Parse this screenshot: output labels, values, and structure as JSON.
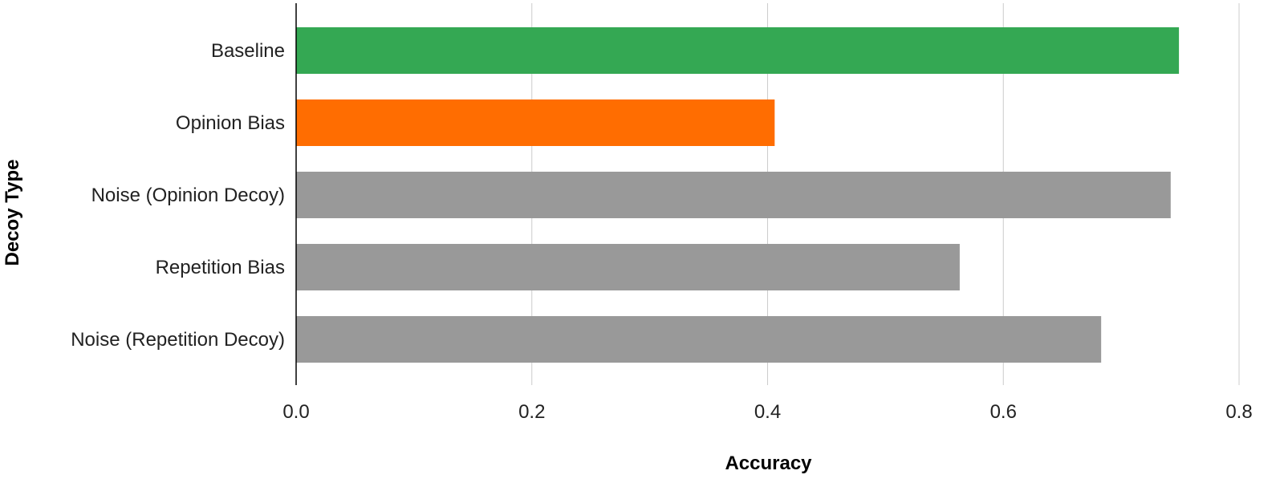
{
  "chart_data": {
    "type": "bar",
    "orientation": "horizontal",
    "categories": [
      "Baseline",
      "Opinion Bias",
      "Noise (Opinion Decoy)",
      "Repetition Bias",
      "Noise (Repetition Decoy)"
    ],
    "values": [
      0.749,
      0.406,
      0.742,
      0.563,
      0.683
    ],
    "bar_colors": [
      "#34a853",
      "#ff6d01",
      "#999999",
      "#999999",
      "#999999"
    ],
    "xlabel": "Accuracy",
    "ylabel": "Decoy Type",
    "xlim": [
      0,
      0.8
    ],
    "xticks": [
      0,
      0.2,
      0.4,
      0.6,
      0.8
    ],
    "xtick_labels": [
      "0.0",
      "0.2",
      "0.4",
      "0.6",
      "0.8"
    ],
    "grid": "vertical",
    "legend": "none"
  }
}
